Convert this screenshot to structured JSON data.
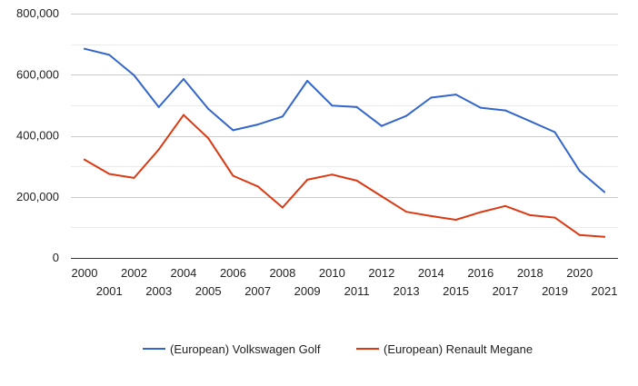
{
  "chart_data": {
    "type": "line",
    "title": "",
    "xlabel": "",
    "ylabel": "",
    "x": [
      "2000",
      "2001",
      "2002",
      "2003",
      "2004",
      "2005",
      "2006",
      "2007",
      "2008",
      "2009",
      "2010",
      "2011",
      "2012",
      "2013",
      "2014",
      "2015",
      "2016",
      "2017",
      "2018",
      "2019",
      "2020",
      "2021"
    ],
    "ylim": [
      0,
      800000
    ],
    "yticks": [
      0,
      200000,
      400000,
      600000,
      800000
    ],
    "ytick_labels": [
      "0",
      "200,000",
      "400,000",
      "600,000",
      "800,000"
    ],
    "grid": true,
    "legend_position": "bottom",
    "series": [
      {
        "name": "(European) Volkswagen Golf",
        "color": "#3366cc",
        "values": [
          685000,
          665000,
          598000,
          494000,
          586000,
          488000,
          418000,
          437000,
          463000,
          580000,
          499000,
          494000,
          432000,
          465000,
          525000,
          535000,
          492000,
          483000,
          448000,
          412000,
          285000,
          216000
        ]
      },
      {
        "name": "(European) Renault Megane",
        "color": "#dc3912",
        "values": [
          322000,
          275000,
          262000,
          355000,
          468000,
          392000,
          269000,
          234000,
          165000,
          256000,
          273000,
          253000,
          202000,
          151000,
          137000,
          125000,
          150000,
          170000,
          140000,
          132000,
          75000,
          69000
        ]
      }
    ]
  }
}
